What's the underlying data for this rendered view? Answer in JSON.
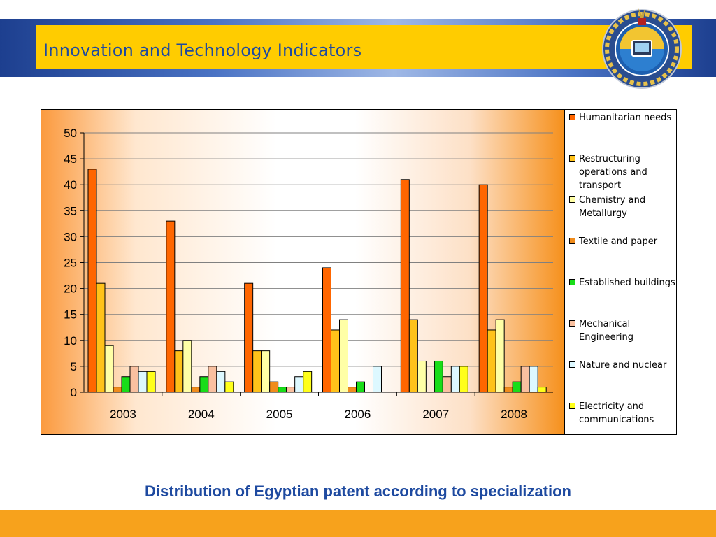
{
  "slide": {
    "title": "Innovation and Technology Indicators",
    "caption": "Distribution of Egyptian patent according to specialization"
  },
  "colors": {
    "header_band": "#2a56b5",
    "title_bar": "#ffcc00",
    "title_text": "#1e4aa0",
    "footer_band": "#f7a21c"
  },
  "chart_data": {
    "type": "bar",
    "title": "",
    "xlabel": "",
    "ylabel": "",
    "categories": [
      "2003",
      "2004",
      "2005",
      "2006",
      "2007",
      "2008"
    ],
    "ylim": [
      0,
      50
    ],
    "yticks": [
      0,
      5,
      10,
      15,
      20,
      25,
      30,
      35,
      40,
      45,
      50
    ],
    "grid": true,
    "legend_position": "right",
    "series": [
      {
        "name": "Humanitarian needs",
        "color": "#ff6600",
        "values": [
          43,
          33,
          21,
          24,
          41,
          40
        ]
      },
      {
        "name": "Restructuring operations and transport",
        "color": "#ffc21a",
        "values": [
          21,
          8,
          8,
          12,
          14,
          12
        ]
      },
      {
        "name": "Chemistry and Metallurgy",
        "color": "#ffffa6",
        "values": [
          9,
          10,
          8,
          14,
          6,
          14
        ]
      },
      {
        "name": "Textile and paper",
        "color": "#f08c1c",
        "values": [
          1,
          1,
          2,
          1,
          0,
          1
        ]
      },
      {
        "name": "Established buildings",
        "color": "#19dd19",
        "values": [
          3,
          3,
          1,
          2,
          6,
          2
        ]
      },
      {
        "name": "Mechanical Engineering",
        "color": "#f9c0a0",
        "values": [
          5,
          5,
          1,
          0,
          3,
          5
        ]
      },
      {
        "name": "Nature and nuclear",
        "color": "#ddf8ff",
        "values": [
          4,
          4,
          3,
          5,
          5,
          5
        ]
      },
      {
        "name": "Electricity and communications",
        "color": "#ffff1a",
        "values": [
          4,
          2,
          4,
          0,
          5,
          1
        ]
      }
    ]
  }
}
